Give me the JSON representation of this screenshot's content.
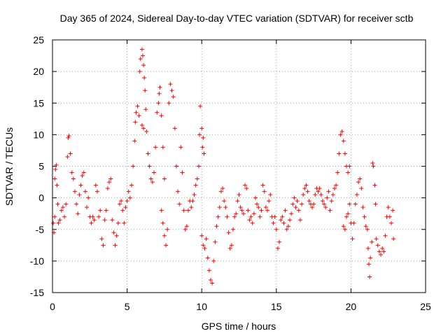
{
  "chart_data": {
    "type": "scatter",
    "title": "Day 365 of 2024, Sidereal Day-to-day VTEC variation (SDTVAR) for receiver sctb",
    "xlabel": "GPS time / hours",
    "ylabel": "SDTVAR / TECUs",
    "xlim": [
      0,
      25
    ],
    "ylim": [
      -15,
      25
    ],
    "xticks": [
      0,
      5,
      10,
      15,
      20,
      25
    ],
    "yticks": [
      -15,
      -10,
      -5,
      0,
      5,
      10,
      15,
      20,
      25
    ],
    "grid": true,
    "marker": "+",
    "color": "#ff0000",
    "series": [
      {
        "name": "SDTVAR",
        "points": [
          [
            0.05,
            -4.0
          ],
          [
            0.1,
            -5.5
          ],
          [
            0.15,
            -3.0
          ],
          [
            0.15,
            3.0
          ],
          [
            0.2,
            4.5
          ],
          [
            0.25,
            5.2
          ],
          [
            0.3,
            2.0
          ],
          [
            0.35,
            -1.0
          ],
          [
            0.4,
            -4.0
          ],
          [
            0.5,
            -3.5
          ],
          [
            0.6,
            -2.0
          ],
          [
            0.7,
            -1.5
          ],
          [
            0.8,
            -3.0
          ],
          [
            0.9,
            -1.0
          ],
          [
            1.0,
            6.5
          ],
          [
            1.05,
            9.5
          ],
          [
            1.1,
            9.8
          ],
          [
            1.2,
            7.0
          ],
          [
            1.3,
            4.0
          ],
          [
            1.4,
            3.0
          ],
          [
            1.5,
            1.0
          ],
          [
            1.6,
            -1.0
          ],
          [
            1.7,
            -2.5
          ],
          [
            1.8,
            0.5
          ],
          [
            1.9,
            2.0
          ],
          [
            2.0,
            3.5
          ],
          [
            2.1,
            4.0
          ],
          [
            2.2,
            1.0
          ],
          [
            2.3,
            -1.5
          ],
          [
            2.4,
            0.0
          ],
          [
            2.5,
            -3.0
          ],
          [
            2.6,
            -4.0
          ],
          [
            2.7,
            -3.0
          ],
          [
            2.8,
            -3.5
          ],
          [
            2.9,
            2.0
          ],
          [
            3.0,
            1.0
          ],
          [
            3.1,
            -3.0
          ],
          [
            3.2,
            -2.0
          ],
          [
            3.3,
            -6.5
          ],
          [
            3.4,
            -7.5
          ],
          [
            3.5,
            -3.5
          ],
          [
            3.6,
            -2.0
          ],
          [
            3.7,
            1.5
          ],
          [
            3.8,
            2.5
          ],
          [
            3.9,
            3.0
          ],
          [
            4.0,
            -3.5
          ],
          [
            4.1,
            -5.5
          ],
          [
            4.2,
            -7.5
          ],
          [
            4.3,
            -6.0
          ],
          [
            4.4,
            -4.0
          ],
          [
            4.5,
            -1.0
          ],
          [
            4.6,
            -0.5
          ],
          [
            4.7,
            -2.0
          ],
          [
            4.8,
            -4.0
          ],
          [
            4.9,
            -1.5
          ],
          [
            5.0,
            -0.5
          ],
          [
            5.1,
            1.0
          ],
          [
            5.2,
            0.0
          ],
          [
            5.3,
            2.0
          ],
          [
            5.4,
            5.0
          ],
          [
            5.5,
            9.0
          ],
          [
            5.55,
            12.0
          ],
          [
            5.6,
            13.5
          ],
          [
            5.7,
            14.5
          ],
          [
            5.8,
            13.0
          ],
          [
            5.85,
            20.0
          ],
          [
            5.9,
            22.0
          ],
          [
            6.0,
            23.5
          ],
          [
            6.05,
            22.5
          ],
          [
            6.1,
            21.0
          ],
          [
            6.15,
            19.0
          ],
          [
            6.2,
            17.0
          ],
          [
            6.25,
            14.0
          ],
          [
            6.0,
            11.5
          ],
          [
            6.1,
            11.0
          ],
          [
            6.3,
            10.5
          ],
          [
            6.4,
            7.0
          ],
          [
            6.5,
            5.0
          ],
          [
            6.6,
            3.0
          ],
          [
            6.7,
            2.5
          ],
          [
            6.8,
            4.0
          ],
          [
            6.9,
            8.0
          ],
          [
            7.0,
            13.5
          ],
          [
            7.1,
            15.0
          ],
          [
            7.15,
            16.5
          ],
          [
            7.2,
            17.5
          ],
          [
            7.3,
            13.0
          ],
          [
            7.4,
            8.0
          ],
          [
            7.5,
            3.0
          ],
          [
            7.3,
            -2.0
          ],
          [
            7.4,
            -4.0
          ],
          [
            7.5,
            -6.0
          ],
          [
            7.6,
            -7.5
          ],
          [
            7.7,
            -5.0
          ],
          [
            7.8,
            15.0
          ],
          [
            7.9,
            18.0
          ],
          [
            8.0,
            17.0
          ],
          [
            8.1,
            16.0
          ],
          [
            8.2,
            11.0
          ],
          [
            8.3,
            5.0
          ],
          [
            8.4,
            1.0
          ],
          [
            8.5,
            -1.0
          ],
          [
            8.6,
            8.0
          ],
          [
            8.7,
            4.0
          ],
          [
            8.8,
            -2.0
          ],
          [
            8.9,
            -5.0
          ],
          [
            9.0,
            -4.5
          ],
          [
            9.1,
            -2.0
          ],
          [
            9.2,
            -0.5
          ],
          [
            9.3,
            -1.5
          ],
          [
            9.4,
            -0.5
          ],
          [
            9.5,
            0.5
          ],
          [
            9.6,
            2.0
          ],
          [
            9.7,
            3.0
          ],
          [
            9.8,
            5.0
          ],
          [
            9.85,
            10.0
          ],
          [
            9.9,
            14.5
          ],
          [
            10.0,
            11.0
          ],
          [
            10.05,
            8.0
          ],
          [
            10.1,
            9.5
          ],
          [
            10.15,
            7.0
          ],
          [
            10.0,
            -6.0
          ],
          [
            10.1,
            -7.5
          ],
          [
            10.2,
            -8.0
          ],
          [
            10.3,
            -6.5
          ],
          [
            10.4,
            -9.5
          ],
          [
            10.5,
            -11.5
          ],
          [
            10.6,
            -13.0
          ],
          [
            10.7,
            -13.5
          ],
          [
            10.8,
            -10.0
          ],
          [
            10.9,
            -7.0
          ],
          [
            11.0,
            -4.5
          ],
          [
            11.1,
            -3.0
          ],
          [
            11.2,
            -1.5
          ],
          [
            11.3,
            1.0
          ],
          [
            11.4,
            1.5
          ],
          [
            11.5,
            -0.5
          ],
          [
            11.6,
            -1.5
          ],
          [
            11.7,
            -3.0
          ],
          [
            11.8,
            -5.5
          ],
          [
            11.9,
            -8.0
          ],
          [
            12.0,
            -7.5
          ],
          [
            12.1,
            -5.0
          ],
          [
            12.2,
            -3.0
          ],
          [
            12.3,
            -2.5
          ],
          [
            12.4,
            -0.5
          ],
          [
            12.5,
            0.5
          ],
          [
            12.6,
            -1.5
          ],
          [
            12.7,
            -2.0
          ],
          [
            12.8,
            -2.5
          ],
          [
            12.9,
            2.0
          ],
          [
            13.0,
            1.5
          ],
          [
            13.1,
            -2.0
          ],
          [
            13.2,
            -3.5
          ],
          [
            13.3,
            -3.0
          ],
          [
            13.4,
            -4.0
          ],
          [
            13.5,
            -2.5
          ],
          [
            13.6,
            0.0
          ],
          [
            13.7,
            -1.0
          ],
          [
            13.8,
            -1.5
          ],
          [
            13.9,
            -3.0
          ],
          [
            14.0,
            -2.0
          ],
          [
            14.1,
            2.0
          ],
          [
            14.2,
            1.0
          ],
          [
            14.3,
            -1.5
          ],
          [
            14.4,
            -2.0
          ],
          [
            14.5,
            -0.5
          ],
          [
            14.6,
            0.5
          ],
          [
            14.7,
            -3.0
          ],
          [
            14.8,
            -4.0
          ],
          [
            14.9,
            -3.0
          ],
          [
            15.0,
            -5.0
          ],
          [
            15.1,
            -8.0
          ],
          [
            15.2,
            -7.0
          ],
          [
            15.3,
            -3.5
          ],
          [
            15.4,
            -3.0
          ],
          [
            15.5,
            -4.0
          ],
          [
            15.6,
            -2.0
          ],
          [
            15.7,
            -5.0
          ],
          [
            15.8,
            -4.5
          ],
          [
            15.9,
            -3.5
          ],
          [
            16.0,
            -2.5
          ],
          [
            16.1,
            -1.0
          ],
          [
            16.2,
            0.0
          ],
          [
            16.3,
            -1.5
          ],
          [
            16.4,
            -0.5
          ],
          [
            16.5,
            -2.0
          ],
          [
            16.6,
            -3.5
          ],
          [
            16.7,
            -1.0
          ],
          [
            16.8,
            0.5
          ],
          [
            16.9,
            1.5
          ],
          [
            17.0,
            2.0
          ],
          [
            17.1,
            1.0
          ],
          [
            17.2,
            -0.5
          ],
          [
            17.3,
            -1.0
          ],
          [
            17.4,
            -1.5
          ],
          [
            17.5,
            -1.0
          ],
          [
            17.6,
            0.5
          ],
          [
            17.7,
            1.5
          ],
          [
            17.8,
            1.0
          ],
          [
            17.9,
            1.5
          ],
          [
            18.0,
            0.5
          ],
          [
            18.1,
            -0.5
          ],
          [
            18.2,
            -1.0
          ],
          [
            18.3,
            -1.5
          ],
          [
            18.4,
            0.0
          ],
          [
            18.5,
            1.0
          ],
          [
            18.6,
            -2.0
          ],
          [
            18.7,
            -0.5
          ],
          [
            18.8,
            0.5
          ],
          [
            18.9,
            1.5
          ],
          [
            19.0,
            2.0
          ],
          [
            19.1,
            4.0
          ],
          [
            19.2,
            7.0
          ],
          [
            19.3,
            10.0
          ],
          [
            19.4,
            10.5
          ],
          [
            19.5,
            9.0
          ],
          [
            19.6,
            7.0
          ],
          [
            19.7,
            5.0
          ],
          [
            19.8,
            4.0
          ],
          [
            19.9,
            5.0
          ],
          [
            19.5,
            -4.5
          ],
          [
            19.6,
            -5.0
          ],
          [
            19.7,
            -3.0
          ],
          [
            19.8,
            -2.5
          ],
          [
            19.9,
            -1.0
          ],
          [
            20.0,
            -4.0
          ],
          [
            20.1,
            -6.5
          ],
          [
            20.2,
            -4.0
          ],
          [
            20.3,
            -1.0
          ],
          [
            20.4,
            0.5
          ],
          [
            20.5,
            2.5
          ],
          [
            20.6,
            3.0
          ],
          [
            20.7,
            1.5
          ],
          [
            20.8,
            -1.5
          ],
          [
            20.9,
            -3.0
          ],
          [
            21.0,
            -4.5
          ],
          [
            21.1,
            -5.0
          ],
          [
            21.15,
            -8.0
          ],
          [
            21.2,
            -10.5
          ],
          [
            21.25,
            -12.5
          ],
          [
            21.3,
            -9.5
          ],
          [
            21.4,
            -7.0
          ],
          [
            21.45,
            5.5
          ],
          [
            21.5,
            5.0
          ],
          [
            21.6,
            2.0
          ],
          [
            21.65,
            -1.0
          ],
          [
            21.7,
            -6.5
          ],
          [
            21.8,
            -7.5
          ],
          [
            21.9,
            -8.5
          ],
          [
            22.0,
            -9.0
          ],
          [
            22.1,
            -8.0
          ],
          [
            22.2,
            -8.5
          ],
          [
            22.3,
            -6.0
          ],
          [
            22.4,
            -3.0
          ],
          [
            22.5,
            -1.5
          ],
          [
            22.6,
            -3.0
          ],
          [
            22.7,
            -4.0
          ],
          [
            22.8,
            -2.0
          ],
          [
            22.85,
            -6.5
          ]
        ]
      }
    ]
  }
}
